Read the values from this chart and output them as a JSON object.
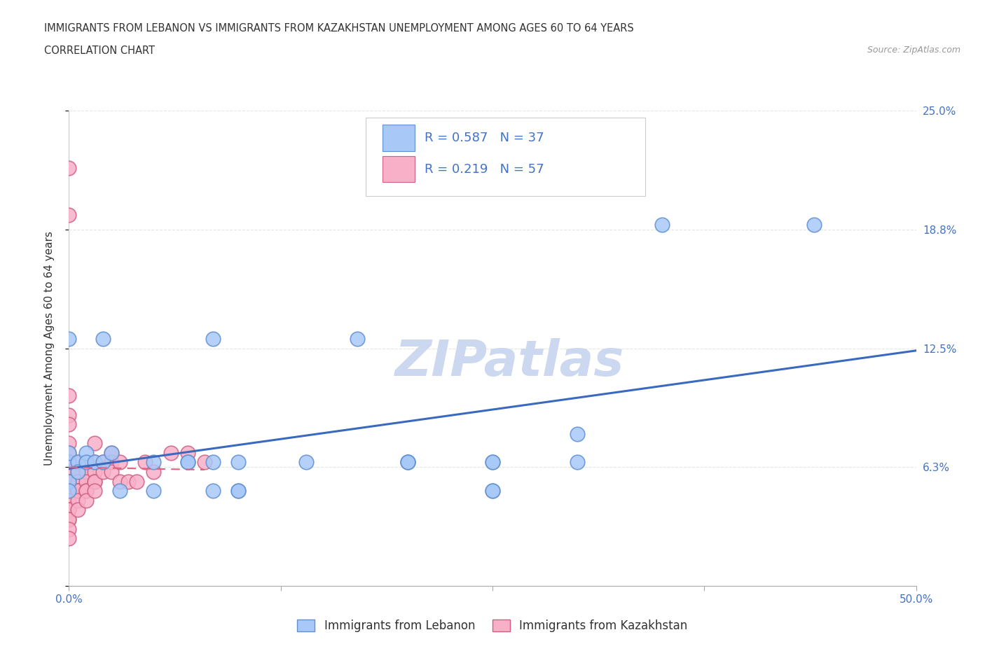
{
  "title_line1": "IMMIGRANTS FROM LEBANON VS IMMIGRANTS FROM KAZAKHSTAN UNEMPLOYMENT AMONG AGES 60 TO 64 YEARS",
  "title_line2": "CORRELATION CHART",
  "source_text": "Source: ZipAtlas.com",
  "ylabel": "Unemployment Among Ages 60 to 64 years",
  "xlim": [
    0.0,
    0.5
  ],
  "ylim": [
    0.0,
    0.25
  ],
  "lebanon_face": "#a8c8f8",
  "lebanon_edge": "#6090d0",
  "kazakhstan_face": "#f8b0c8",
  "kazakhstan_edge": "#d06080",
  "lebanon_R": 0.587,
  "lebanon_N": 37,
  "kazakhstan_R": 0.219,
  "kazakhstan_N": 57,
  "legend_color": "#4472c4",
  "watermark": "ZIPatlas",
  "watermark_color": "#ccd8f0",
  "lebanon_scatter": [
    [
      0.0,
      0.13
    ],
    [
      0.0,
      0.065
    ],
    [
      0.0,
      0.07
    ],
    [
      0.0,
      0.055
    ],
    [
      0.0,
      0.05
    ],
    [
      0.005,
      0.065
    ],
    [
      0.005,
      0.06
    ],
    [
      0.01,
      0.07
    ],
    [
      0.01,
      0.065
    ],
    [
      0.015,
      0.065
    ],
    [
      0.02,
      0.065
    ],
    [
      0.02,
      0.13
    ],
    [
      0.025,
      0.07
    ],
    [
      0.05,
      0.065
    ],
    [
      0.07,
      0.065
    ],
    [
      0.085,
      0.13
    ],
    [
      0.085,
      0.065
    ],
    [
      0.1,
      0.065
    ],
    [
      0.14,
      0.065
    ],
    [
      0.17,
      0.13
    ],
    [
      0.2,
      0.065
    ],
    [
      0.2,
      0.065
    ],
    [
      0.25,
      0.065
    ],
    [
      0.25,
      0.065
    ],
    [
      0.3,
      0.065
    ],
    [
      0.35,
      0.19
    ],
    [
      0.44,
      0.19
    ],
    [
      0.07,
      0.065
    ],
    [
      0.1,
      0.05
    ],
    [
      0.1,
      0.05
    ],
    [
      0.085,
      0.05
    ],
    [
      0.03,
      0.05
    ],
    [
      0.05,
      0.05
    ],
    [
      0.2,
      0.065
    ],
    [
      0.3,
      0.08
    ],
    [
      0.25,
      0.05
    ],
    [
      0.25,
      0.05
    ]
  ],
  "kazakhstan_scatter": [
    [
      0.0,
      0.22
    ],
    [
      0.0,
      0.195
    ],
    [
      0.0,
      0.1
    ],
    [
      0.0,
      0.09
    ],
    [
      0.0,
      0.085
    ],
    [
      0.0,
      0.075
    ],
    [
      0.0,
      0.07
    ],
    [
      0.0,
      0.065
    ],
    [
      0.0,
      0.065
    ],
    [
      0.0,
      0.06
    ],
    [
      0.0,
      0.055
    ],
    [
      0.0,
      0.055
    ],
    [
      0.0,
      0.055
    ],
    [
      0.0,
      0.05
    ],
    [
      0.0,
      0.05
    ],
    [
      0.0,
      0.05
    ],
    [
      0.0,
      0.045
    ],
    [
      0.0,
      0.04
    ],
    [
      0.0,
      0.04
    ],
    [
      0.0,
      0.04
    ],
    [
      0.0,
      0.035
    ],
    [
      0.0,
      0.035
    ],
    [
      0.0,
      0.03
    ],
    [
      0.005,
      0.065
    ],
    [
      0.005,
      0.06
    ],
    [
      0.005,
      0.055
    ],
    [
      0.005,
      0.05
    ],
    [
      0.005,
      0.05
    ],
    [
      0.005,
      0.05
    ],
    [
      0.005,
      0.045
    ],
    [
      0.005,
      0.04
    ],
    [
      0.01,
      0.06
    ],
    [
      0.01,
      0.055
    ],
    [
      0.01,
      0.05
    ],
    [
      0.01,
      0.05
    ],
    [
      0.01,
      0.045
    ],
    [
      0.015,
      0.075
    ],
    [
      0.015,
      0.065
    ],
    [
      0.015,
      0.06
    ],
    [
      0.015,
      0.055
    ],
    [
      0.015,
      0.055
    ],
    [
      0.015,
      0.05
    ],
    [
      0.02,
      0.065
    ],
    [
      0.02,
      0.06
    ],
    [
      0.025,
      0.07
    ],
    [
      0.025,
      0.065
    ],
    [
      0.025,
      0.06
    ],
    [
      0.03,
      0.065
    ],
    [
      0.03,
      0.055
    ],
    [
      0.035,
      0.055
    ],
    [
      0.04,
      0.055
    ],
    [
      0.045,
      0.065
    ],
    [
      0.05,
      0.06
    ],
    [
      0.06,
      0.07
    ],
    [
      0.07,
      0.07
    ],
    [
      0.08,
      0.065
    ],
    [
      0.0,
      0.025
    ]
  ],
  "trendline_leb_color": "#3a6abf",
  "trendline_kaz_color": "#e06080",
  "grid_color": "#e0e8e0",
  "bg_color": "#ffffff",
  "right_tick_color": "#4472c4",
  "x_tick_labels": [
    "0.0%",
    "",
    "",
    "",
    "50.0%"
  ],
  "y_tick_labels_right": [
    "25.0%",
    "18.8%",
    "12.5%",
    "6.3%",
    ""
  ],
  "scatter_size": 220,
  "scatter_alpha": 0.85,
  "scatter_lw": 1.2
}
